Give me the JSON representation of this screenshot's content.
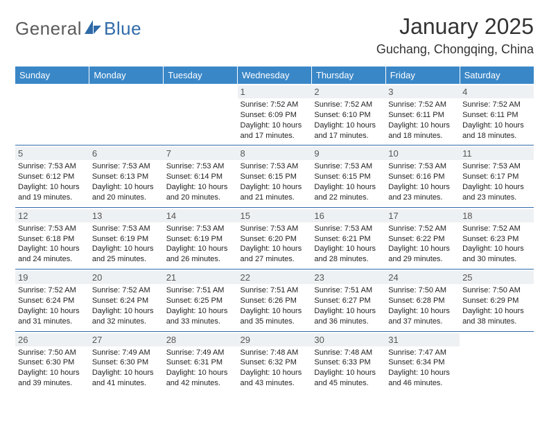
{
  "brand": {
    "general": "General",
    "blue": "Blue"
  },
  "title": "January 2025",
  "location": "Guchang, Chongqing, China",
  "colors": {
    "header_bg": "#3a87c7",
    "header_text": "#ffffff",
    "row_divider": "#2f6aa8",
    "daynum_bg": "#eef1f3",
    "logo_blue": "#2f6aa8",
    "logo_gray": "#5a5a5a"
  },
  "weekdays": [
    "Sunday",
    "Monday",
    "Tuesday",
    "Wednesday",
    "Thursday",
    "Friday",
    "Saturday"
  ],
  "weeks": [
    [
      {
        "n": "",
        "sr": "",
        "ss": "",
        "dl": ""
      },
      {
        "n": "",
        "sr": "",
        "ss": "",
        "dl": ""
      },
      {
        "n": "",
        "sr": "",
        "ss": "",
        "dl": ""
      },
      {
        "n": "1",
        "sr": "7:52 AM",
        "ss": "6:09 PM",
        "dl": "10 hours and 17 minutes."
      },
      {
        "n": "2",
        "sr": "7:52 AM",
        "ss": "6:10 PM",
        "dl": "10 hours and 17 minutes."
      },
      {
        "n": "3",
        "sr": "7:52 AM",
        "ss": "6:11 PM",
        "dl": "10 hours and 18 minutes."
      },
      {
        "n": "4",
        "sr": "7:52 AM",
        "ss": "6:11 PM",
        "dl": "10 hours and 18 minutes."
      }
    ],
    [
      {
        "n": "5",
        "sr": "7:53 AM",
        "ss": "6:12 PM",
        "dl": "10 hours and 19 minutes."
      },
      {
        "n": "6",
        "sr": "7:53 AM",
        "ss": "6:13 PM",
        "dl": "10 hours and 20 minutes."
      },
      {
        "n": "7",
        "sr": "7:53 AM",
        "ss": "6:14 PM",
        "dl": "10 hours and 20 minutes."
      },
      {
        "n": "8",
        "sr": "7:53 AM",
        "ss": "6:15 PM",
        "dl": "10 hours and 21 minutes."
      },
      {
        "n": "9",
        "sr": "7:53 AM",
        "ss": "6:15 PM",
        "dl": "10 hours and 22 minutes."
      },
      {
        "n": "10",
        "sr": "7:53 AM",
        "ss": "6:16 PM",
        "dl": "10 hours and 23 minutes."
      },
      {
        "n": "11",
        "sr": "7:53 AM",
        "ss": "6:17 PM",
        "dl": "10 hours and 23 minutes."
      }
    ],
    [
      {
        "n": "12",
        "sr": "7:53 AM",
        "ss": "6:18 PM",
        "dl": "10 hours and 24 minutes."
      },
      {
        "n": "13",
        "sr": "7:53 AM",
        "ss": "6:19 PM",
        "dl": "10 hours and 25 minutes."
      },
      {
        "n": "14",
        "sr": "7:53 AM",
        "ss": "6:19 PM",
        "dl": "10 hours and 26 minutes."
      },
      {
        "n": "15",
        "sr": "7:53 AM",
        "ss": "6:20 PM",
        "dl": "10 hours and 27 minutes."
      },
      {
        "n": "16",
        "sr": "7:53 AM",
        "ss": "6:21 PM",
        "dl": "10 hours and 28 minutes."
      },
      {
        "n": "17",
        "sr": "7:52 AM",
        "ss": "6:22 PM",
        "dl": "10 hours and 29 minutes."
      },
      {
        "n": "18",
        "sr": "7:52 AM",
        "ss": "6:23 PM",
        "dl": "10 hours and 30 minutes."
      }
    ],
    [
      {
        "n": "19",
        "sr": "7:52 AM",
        "ss": "6:24 PM",
        "dl": "10 hours and 31 minutes."
      },
      {
        "n": "20",
        "sr": "7:52 AM",
        "ss": "6:24 PM",
        "dl": "10 hours and 32 minutes."
      },
      {
        "n": "21",
        "sr": "7:51 AM",
        "ss": "6:25 PM",
        "dl": "10 hours and 33 minutes."
      },
      {
        "n": "22",
        "sr": "7:51 AM",
        "ss": "6:26 PM",
        "dl": "10 hours and 35 minutes."
      },
      {
        "n": "23",
        "sr": "7:51 AM",
        "ss": "6:27 PM",
        "dl": "10 hours and 36 minutes."
      },
      {
        "n": "24",
        "sr": "7:50 AM",
        "ss": "6:28 PM",
        "dl": "10 hours and 37 minutes."
      },
      {
        "n": "25",
        "sr": "7:50 AM",
        "ss": "6:29 PM",
        "dl": "10 hours and 38 minutes."
      }
    ],
    [
      {
        "n": "26",
        "sr": "7:50 AM",
        "ss": "6:30 PM",
        "dl": "10 hours and 39 minutes."
      },
      {
        "n": "27",
        "sr": "7:49 AM",
        "ss": "6:30 PM",
        "dl": "10 hours and 41 minutes."
      },
      {
        "n": "28",
        "sr": "7:49 AM",
        "ss": "6:31 PM",
        "dl": "10 hours and 42 minutes."
      },
      {
        "n": "29",
        "sr": "7:48 AM",
        "ss": "6:32 PM",
        "dl": "10 hours and 43 minutes."
      },
      {
        "n": "30",
        "sr": "7:48 AM",
        "ss": "6:33 PM",
        "dl": "10 hours and 45 minutes."
      },
      {
        "n": "31",
        "sr": "7:47 AM",
        "ss": "6:34 PM",
        "dl": "10 hours and 46 minutes."
      },
      {
        "n": "",
        "sr": "",
        "ss": "",
        "dl": ""
      }
    ]
  ],
  "labels": {
    "sunrise": "Sunrise:",
    "sunset": "Sunset:",
    "daylight": "Daylight:"
  }
}
